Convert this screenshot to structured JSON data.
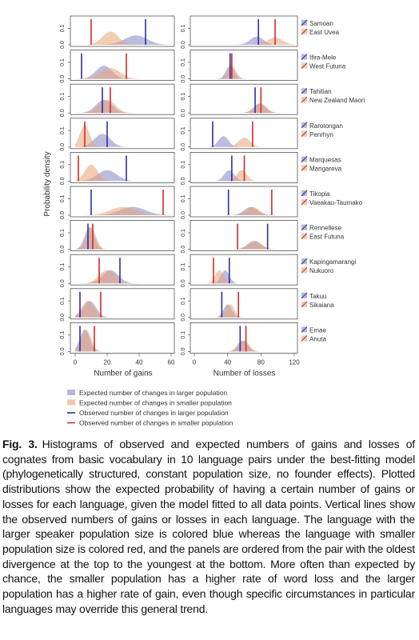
{
  "chart_data": {
    "type": "density",
    "y_label": "Probability density",
    "ylim": [
      0,
      0.16
    ],
    "yticks": [
      {
        "value": 0,
        "label": "0.0"
      },
      {
        "value": 0.1,
        "label": "0.1"
      }
    ],
    "panels": [
      {
        "x_label": "Number of gains",
        "xlim": [
          0,
          60
        ],
        "xticks": [
          0,
          20,
          40,
          60
        ]
      },
      {
        "x_label": "Number of losses",
        "xlim": [
          0,
          120
        ],
        "xticks": [
          0,
          40,
          80,
          120
        ]
      }
    ],
    "legend": [
      {
        "label": "Expected number of changes in larger population",
        "color": "#8585c4"
      },
      {
        "label": "Expected number of changes in smaller population",
        "color": "#e9a276"
      },
      {
        "label": "Observed number of changes in larger population",
        "color": "#2e2e9a"
      },
      {
        "label": "Observed number of changes in smaller population",
        "color": "#d22a2a"
      }
    ],
    "rows": [
      {
        "larger": "Samoan",
        "smaller": "East Uvea",
        "panels": [
          {
            "larger": {
              "mean": 38,
              "sd": 7,
              "observed": 44
            },
            "smaller": {
              "mean": 22,
              "sd": 5,
              "observed": 10
            }
          },
          {
            "larger": {
              "mean": 75,
              "sd": 8,
              "observed": 77
            },
            "smaller": {
              "mean": 97,
              "sd": 9,
              "observed": 97
            }
          }
        ]
      },
      {
        "larger": "Ifira-Mele",
        "smaller": "West Futuna",
        "panels": [
          {
            "larger": {
              "mean": 18,
              "sd": 5,
              "observed": 4
            },
            "smaller": {
              "mean": 22,
              "sd": 6,
              "observed": 32
            }
          },
          {
            "larger": {
              "mean": 43,
              "sd": 5,
              "observed": 43
            },
            "smaller": {
              "mean": 45,
              "sd": 5,
              "observed": 45
            }
          }
        ]
      },
      {
        "larger": "Tahitian",
        "smaller": "New Zealand Maori",
        "panels": [
          {
            "larger": {
              "mean": 18,
              "sd": 5,
              "observed": 17
            },
            "smaller": {
              "mean": 20,
              "sd": 5,
              "observed": 22
            }
          },
          {
            "larger": {
              "mean": 78,
              "sd": 7,
              "observed": 73
            },
            "smaller": {
              "mean": 80,
              "sd": 7,
              "observed": 80
            }
          }
        ]
      },
      {
        "larger": "Rarotongan",
        "smaller": "Penrhyn",
        "panels": [
          {
            "larger": {
              "mean": 17,
              "sd": 5,
              "observed": 20
            },
            "smaller": {
              "mean": 6,
              "sd": 3,
              "observed": 6
            }
          },
          {
            "larger": {
              "mean": 35,
              "sd": 6,
              "observed": 22
            },
            "smaller": {
              "mean": 60,
              "sd": 7,
              "observed": 70
            }
          }
        ]
      },
      {
        "larger": "Marquesas",
        "smaller": "Mangareva",
        "panels": [
          {
            "larger": {
              "mean": 20,
              "sd": 6,
              "observed": 32
            },
            "smaller": {
              "mean": 10,
              "sd": 4,
              "observed": 2
            }
          },
          {
            "larger": {
              "mean": 42,
              "sd": 6,
              "observed": 45
            },
            "smaller": {
              "mean": 57,
              "sd": 6,
              "observed": 60
            }
          }
        ]
      },
      {
        "larger": "Tikopia",
        "smaller": "Vaeakau-Taumako",
        "panels": [
          {
            "larger": {
              "mean": 36,
              "sd": 8,
              "observed": 10
            },
            "smaller": {
              "mean": 30,
              "sd": 8,
              "observed": 55
            }
          },
          {
            "larger": {
              "mean": 68,
              "sd": 8,
              "observed": 41
            },
            "smaller": {
              "mean": 70,
              "sd": 8,
              "observed": 93
            }
          }
        ]
      },
      {
        "larger": "Rennellese",
        "smaller": "East Futuna",
        "panels": [
          {
            "larger": {
              "mean": 9,
              "sd": 3,
              "observed": 8
            },
            "smaller": {
              "mean": 10,
              "sd": 3,
              "observed": 11
            }
          },
          {
            "larger": {
              "mean": 72,
              "sd": 8,
              "observed": 88
            },
            "smaller": {
              "mean": 73,
              "sd": 8,
              "observed": 52
            }
          }
        ]
      },
      {
        "larger": "Kapingamarangi",
        "smaller": "Nukuoro",
        "panels": [
          {
            "larger": {
              "mean": 22,
              "sd": 5,
              "observed": 28
            },
            "smaller": {
              "mean": 20,
              "sd": 5,
              "observed": 15
            }
          },
          {
            "larger": {
              "mean": 37,
              "sd": 5,
              "observed": 42
            },
            "smaller": {
              "mean": 30,
              "sd": 5,
              "observed": 23
            }
          }
        ]
      },
      {
        "larger": "Takuu",
        "smaller": "Sikaiana",
        "panels": [
          {
            "larger": {
              "mean": 9,
              "sd": 4,
              "observed": 3
            },
            "smaller": {
              "mean": 8,
              "sd": 4,
              "observed": 16
            }
          },
          {
            "larger": {
              "mean": 40,
              "sd": 5,
              "observed": 33
            },
            "smaller": {
              "mean": 43,
              "sd": 5,
              "observed": 53
            }
          }
        ]
      },
      {
        "larger": "Emae",
        "smaller": "Anuta",
        "panels": [
          {
            "larger": {
              "mean": 6,
              "sd": 3,
              "observed": 3
            },
            "smaller": {
              "mean": 7,
              "sd": 3,
              "observed": 12
            }
          },
          {
            "larger": {
              "mean": 58,
              "sd": 6,
              "observed": 55
            },
            "smaller": {
              "mean": 60,
              "sd": 6,
              "observed": 62
            }
          }
        ]
      }
    ]
  },
  "caption": {
    "label": "Fig. 3.",
    "text": "Histograms of observed and expected numbers of gains and losses of cognates from basic vocabulary in 10 language pairs under the best-fitting model (phylogenetically structured, constant population size, no founder effects). Plotted distributions show the expected probability of having a certain number of gains or losses for each language, given the model fitted to all data points. Vertical lines show the observed numbers of gains or losses in each language. The language with the larger speaker population size is colored blue whereas the language with smaller population size is colored red, and the panels are ordered from the pair with the oldest divergence at the top to the youngest at the bottom. More often than expected by chance, the smaller population has a higher rate of word loss and the larger population has a higher rate of gain, even though specific circumstances in particular languages may override this general trend."
  }
}
